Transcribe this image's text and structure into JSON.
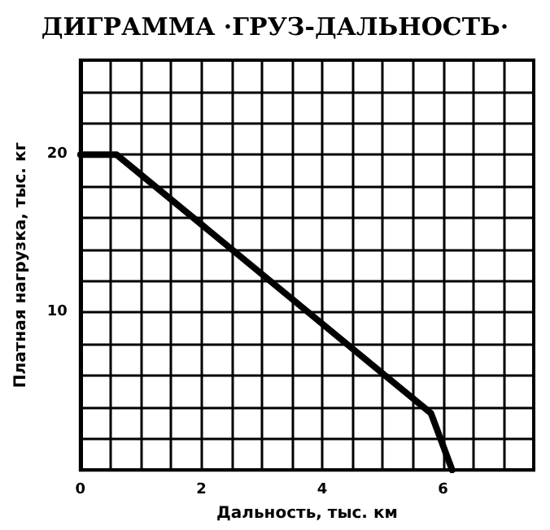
{
  "chart_data": {
    "type": "line",
    "title": "ДИГРАММА ·ГРУЗ-ДАЛЬНОСТЬ·",
    "xlabel": "Дальность, тыс. км",
    "ylabel": "Платная нагрузка, тыс. кг",
    "x": [
      0,
      0.6,
      5.8,
      6.15
    ],
    "series": [
      {
        "color": "#000000",
        "values": [
          20,
          20,
          3.6,
          0
        ]
      }
    ],
    "xlim": [
      0,
      7.5
    ],
    "xticks": [
      0,
      {
        "value": 0.5,
        "label": null
      },
      {
        "value": 1,
        "label": null
      },
      {
        "value": 1.5,
        "label": null
      },
      2,
      {
        "value": 2.5,
        "label": null
      },
      {
        "value": 3,
        "label": null
      },
      {
        "value": 3.5,
        "label": null
      },
      4,
      {
        "value": 4.5,
        "label": null
      },
      {
        "value": 5,
        "label": null
      },
      {
        "value": 5.5,
        "label": null
      },
      6,
      {
        "value": 6.5,
        "label": null
      },
      {
        "value": 7,
        "label": null
      },
      {
        "value": 7.5,
        "label": null
      }
    ],
    "ylim": [
      0,
      26
    ],
    "yticks": [
      {
        "value": 0,
        "label": null
      },
      {
        "value": 2,
        "label": null
      },
      {
        "value": 4,
        "label": null
      },
      {
        "value": 6,
        "label": null
      },
      {
        "value": 8,
        "label": null
      },
      10,
      {
        "value": 12,
        "label": null
      },
      {
        "value": 14,
        "label": null
      },
      {
        "value": 16,
        "label": null
      },
      {
        "value": 18,
        "label": null
      },
      20,
      {
        "value": 22,
        "label": null
      },
      {
        "value": 24,
        "label": null
      },
      {
        "value": 26,
        "label": null
      }
    ],
    "grid": true,
    "marker": "none",
    "line_style": "solid"
  }
}
